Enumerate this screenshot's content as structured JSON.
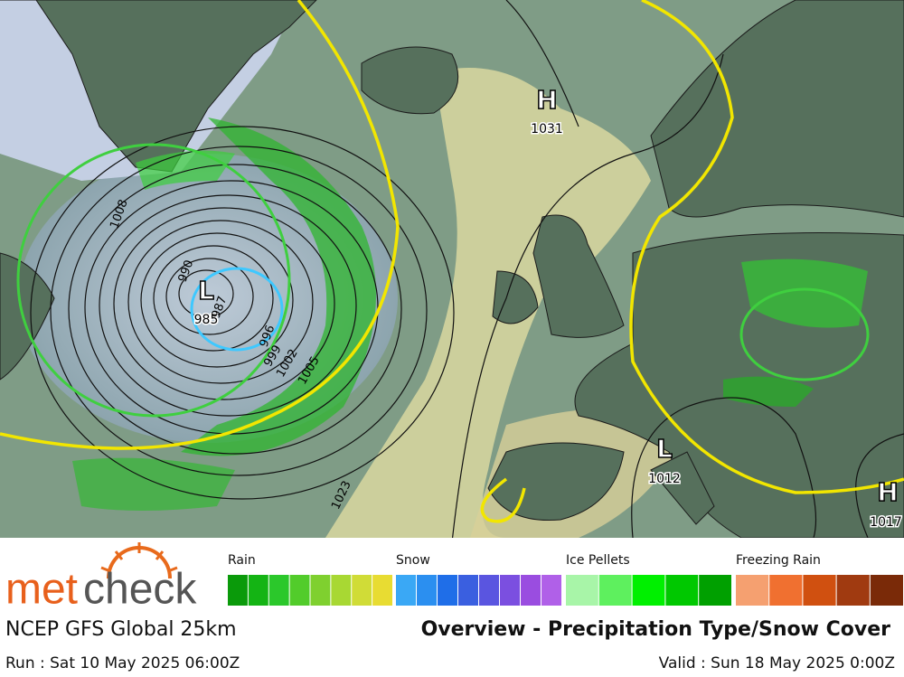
{
  "map": {
    "pressure_centers": [
      {
        "symbol": "H",
        "value": "1031"
      },
      {
        "symbol": "L",
        "value": "985"
      },
      {
        "symbol": "L",
        "value": "1012"
      },
      {
        "symbol": "H",
        "value": "1017"
      }
    ],
    "isobar_labels": [
      "1008",
      "990",
      "987",
      "996",
      "999",
      "1002",
      "1005",
      "1023"
    ]
  },
  "legend": [
    {
      "label": "Rain",
      "colors": [
        "#0a9a0a",
        "#14b414",
        "#2bc82b",
        "#52cc2b",
        "#7fd02f",
        "#a8d833",
        "#d0dc37",
        "#e8dc32"
      ]
    },
    {
      "label": "Snow",
      "colors": [
        "#3aa8f5",
        "#2b8ff0",
        "#1f6ee8",
        "#3a5fe0",
        "#5a55e0",
        "#7b4fe0",
        "#9a4de0",
        "#b060e8"
      ]
    },
    {
      "label": "Ice Pellets",
      "colors": [
        "#a8f5a8",
        "#5ef05e",
        "#00f000",
        "#00c800",
        "#00a000"
      ]
    },
    {
      "label": "Freezing Rain",
      "colors": [
        "#f5a070",
        "#f07030",
        "#d05010",
        "#a03a10",
        "#7a2a08"
      ]
    }
  ],
  "footer": {
    "brand_parts": [
      "met",
      "check"
    ],
    "model": "NCEP GFS Global 25km",
    "title": "Overview - Precipitation Type/Snow Cover",
    "run": "Run : Sat 10 May 2025 06:00Z",
    "valid": "Valid : Sun 18 May 2025 0:00Z"
  }
}
